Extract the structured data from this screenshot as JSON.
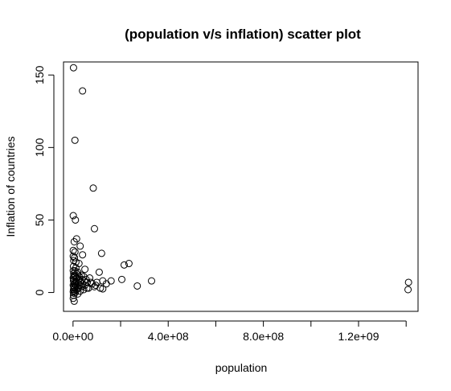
{
  "chart_data": {
    "type": "scatter",
    "title": "(population v/s inflation) scatter plot",
    "xlabel": "population",
    "ylabel": "Inflation of countries",
    "xlim": [
      -40000000,
      1450000000
    ],
    "ylim": [
      -13,
      159
    ],
    "x_ticks": [
      0,
      200000000,
      400000000,
      600000000,
      800000000,
      1000000000,
      1200000000,
      1400000000
    ],
    "x_tick_labels": [
      "0.0e+00",
      "",
      "4.0e+08",
      "",
      "8.0e+08",
      "",
      "1.2e+09",
      ""
    ],
    "y_ticks": [
      0,
      50,
      100,
      150
    ],
    "y_tick_labels": [
      "0",
      "50",
      "100",
      "150"
    ],
    "grid": false,
    "marker": "open-circle",
    "series": [
      {
        "points": [
          [
            2000000,
            155
          ],
          [
            40000000,
            139
          ],
          [
            8000000,
            105
          ],
          [
            85000000,
            72
          ],
          [
            1000000,
            53
          ],
          [
            10000000,
            50
          ],
          [
            90000000,
            44
          ],
          [
            15000000,
            37
          ],
          [
            5000000,
            35
          ],
          [
            30000000,
            32
          ],
          [
            1000000,
            29
          ],
          [
            8000000,
            28
          ],
          [
            40000000,
            26
          ],
          [
            120000000,
            27
          ],
          [
            25000000,
            20
          ],
          [
            215000000,
            19
          ],
          [
            235000000,
            20
          ],
          [
            2000000,
            18
          ],
          [
            12000000,
            17
          ],
          [
            50000000,
            16
          ],
          [
            1000000,
            15
          ],
          [
            20000000,
            14
          ],
          [
            110000000,
            14
          ],
          [
            3000000,
            13
          ],
          [
            6000000,
            12
          ],
          [
            35000000,
            12
          ],
          [
            9000000,
            11
          ],
          [
            45000000,
            11
          ],
          [
            1000000,
            10
          ],
          [
            15000000,
            10
          ],
          [
            70000000,
            10
          ],
          [
            4000000,
            9
          ],
          [
            25000000,
            9
          ],
          [
            55000000,
            9
          ],
          [
            205000000,
            9
          ],
          [
            330000000,
            8
          ],
          [
            160000000,
            8
          ],
          [
            125000000,
            8
          ],
          [
            2000000,
            8
          ],
          [
            10000000,
            7
          ],
          [
            30000000,
            7
          ],
          [
            60000000,
            7
          ],
          [
            100000000,
            7
          ],
          [
            140000000,
            6
          ],
          [
            5000000,
            6
          ],
          [
            20000000,
            6
          ],
          [
            40000000,
            6
          ],
          [
            80000000,
            6
          ],
          [
            1000000,
            5
          ],
          [
            12000000,
            5
          ],
          [
            28000000,
            5
          ],
          [
            50000000,
            5
          ],
          [
            90000000,
            4
          ],
          [
            270000000,
            4.5
          ],
          [
            3000000,
            4
          ],
          [
            18000000,
            4
          ],
          [
            35000000,
            4
          ],
          [
            65000000,
            3
          ],
          [
            115000000,
            3
          ],
          [
            125000000,
            2.5
          ],
          [
            7000000,
            3
          ],
          [
            22000000,
            3
          ],
          [
            45000000,
            2
          ],
          [
            2000000,
            2
          ],
          [
            14000000,
            2
          ],
          [
            30000000,
            1
          ],
          [
            6000000,
            1
          ],
          [
            1000000,
            0.5
          ],
          [
            10000000,
            0
          ],
          [
            4000000,
            -0.5
          ],
          [
            20000000,
            -1
          ],
          [
            2000000,
            -2
          ],
          [
            1000000,
            -4
          ],
          [
            5000000,
            -6
          ],
          [
            1410000000,
            7
          ],
          [
            1408000000,
            2
          ],
          [
            3000000,
            22
          ],
          [
            6000000,
            24
          ],
          [
            12000000,
            21
          ],
          [
            1000000,
            25
          ],
          [
            8000000,
            15
          ],
          [
            16000000,
            13
          ],
          [
            26000000,
            11
          ],
          [
            48000000,
            8
          ],
          [
            75000000,
            7
          ],
          [
            95000000,
            5
          ],
          [
            38000000,
            9
          ],
          [
            58000000,
            3
          ],
          [
            9000000,
            6
          ],
          [
            15000000,
            8
          ],
          [
            3000000,
            11
          ],
          [
            7000000,
            3.5
          ]
        ]
      }
    ]
  }
}
